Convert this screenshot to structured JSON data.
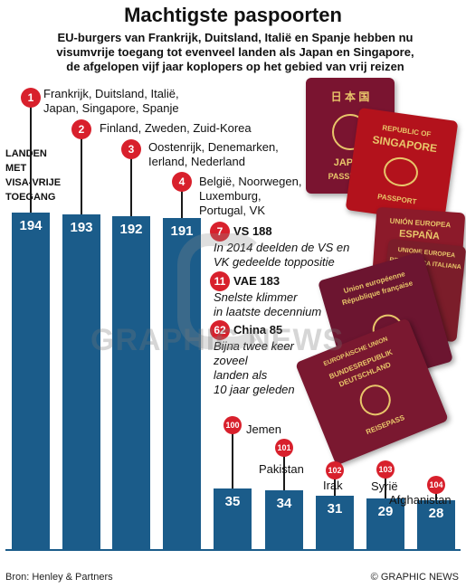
{
  "header": {
    "title": "Machtigste paspoorten",
    "subtitle_lines": [
      "EU-burgers van Frankrijk, Duitsland, Italië en Spanje hebben nu",
      "visumvrije toegang tot evenveel landen als Japan en Singapore,",
      "de afgelopen vijf jaar koplopers op het gebied van vrij reizen"
    ]
  },
  "chart_data": {
    "type": "bar",
    "ylabel": [
      "LANDEN",
      "MET",
      "VISA-VRIJE",
      "TOEGANG"
    ],
    "ranks": [
      "1",
      "2",
      "3",
      "4",
      "100",
      "101",
      "102",
      "103",
      "104"
    ],
    "values": [
      194,
      193,
      192,
      191,
      35,
      34,
      31,
      29,
      28
    ],
    "value_labels": [
      "194",
      "193",
      "192",
      "191",
      "35",
      "34",
      "31",
      "29",
      "28"
    ],
    "category_labels": [
      [
        "Frankrijk, Duitsland, Italië,",
        "Japan, Singapore, Spanje"
      ],
      [
        "Finland, Zweden, Zuid-Korea"
      ],
      [
        "Oostenrijk, Denemarken,",
        "Ierland, Nederland"
      ],
      [
        "België, Noorwegen,",
        "Luxemburg,",
        "Portugal, VK"
      ],
      [
        "Jemen"
      ],
      [
        "Pakistan"
      ],
      [
        "Irak"
      ],
      [
        "Syrië"
      ],
      [
        "Afghanistan"
      ]
    ],
    "annotations": [
      {
        "rank": "7",
        "head": "VS 188",
        "sub": [
          "In 2014 deelden de VS en",
          "VK gedeelde toppositie"
        ]
      },
      {
        "rank": "11",
        "head": "VAE 183",
        "sub": [
          "Snelste klimmer",
          "in laatste decennium"
        ]
      },
      {
        "rank": "62",
        "head": "China 85",
        "sub": [
          "Bijna twee keer",
          "zoveel",
          "landen als",
          "10 jaar geleden"
        ]
      }
    ],
    "colors": {
      "bar": "#1b5c8a",
      "rank_circle": "#d8202c"
    }
  },
  "passports": {
    "japan": {
      "lines": [
        "日 本 国",
        "JAPAN",
        "PASSPORT"
      ]
    },
    "singapore": {
      "lines": [
        "REPUBLIC OF",
        "SINGAPORE",
        "PASSPORT"
      ]
    },
    "spain": {
      "lines": [
        "UNIÓN EUROPEA",
        "ESPAÑA"
      ]
    },
    "italy": {
      "lines": [
        "UNIONE EUROPEA",
        "REPUBBLICA ITALIANA"
      ]
    },
    "france": {
      "lines": [
        "Union européenne",
        "République française"
      ]
    },
    "germany": {
      "lines": [
        "EUROPÄISCHE UNION",
        "BUNDESREPUBLIK",
        "DEUTSCHLAND",
        "REISEPASS"
      ]
    }
  },
  "watermark": "GRAPHIC NEWS",
  "footer": {
    "source": "Bron: Henley & Partners",
    "credit": "© GRAPHIC NEWS"
  }
}
